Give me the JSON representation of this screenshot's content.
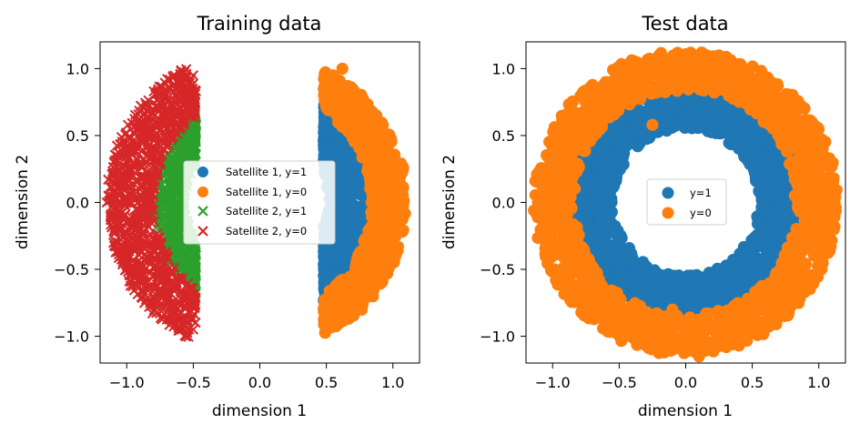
{
  "colors": {
    "blue": "#1f77b4",
    "orange": "#ff7f0e",
    "green": "#2ca02c",
    "red": "#d62728"
  },
  "chart_data": [
    {
      "type": "scatter",
      "title": "Training data",
      "xlabel": "dimension 1",
      "ylabel": "dimension 2",
      "xlim": [
        -1.2,
        1.2
      ],
      "ylim": [
        -1.2,
        1.2
      ],
      "xticks": [
        -1.0,
        -0.5,
        0.0,
        0.5,
        1.0
      ],
      "xtick_labels": [
        "−1.0",
        "−0.5",
        "0.0",
        "0.5",
        "1.0"
      ],
      "yticks": [
        -1.0,
        -0.5,
        0.0,
        0.5,
        1.0
      ],
      "ytick_labels": [
        "−1.0",
        "−0.5",
        "0.0",
        "0.5",
        "1.0"
      ],
      "legend_position": "center",
      "series": [
        {
          "name": "Satellite 1, y=1",
          "marker": "circle",
          "color": "#1f77b4",
          "description": "right half-annulus, radius 0.5 to 0.85, x > 0.45",
          "points": [
            [
              0.6,
              0.55
            ],
            [
              0.7,
              0.4
            ],
            [
              0.75,
              0.25
            ],
            [
              0.8,
              0.1
            ],
            [
              0.8,
              -0.05
            ],
            [
              0.78,
              -0.2
            ],
            [
              0.72,
              -0.35
            ],
            [
              0.65,
              -0.5
            ],
            [
              0.58,
              -0.62
            ],
            [
              0.55,
              -0.8
            ],
            [
              0.62,
              0.2
            ],
            [
              0.68,
              -0.1
            ],
            [
              0.6,
              -0.3
            ],
            [
              0.55,
              0.35
            ]
          ]
        },
        {
          "name": "Satellite 1, y=0",
          "marker": "circle",
          "color": "#ff7f0e",
          "description": "right half-annulus, radius 0.85 to 1.1, x > 0.45",
          "points": [
            [
              0.55,
              0.95
            ],
            [
              0.62,
              1.0
            ],
            [
              0.75,
              0.8
            ],
            [
              0.88,
              0.6
            ],
            [
              0.95,
              0.4
            ],
            [
              1.0,
              0.2
            ],
            [
              1.05,
              0.0
            ],
            [
              1.02,
              -0.2
            ],
            [
              0.95,
              -0.4
            ],
            [
              0.85,
              -0.6
            ],
            [
              0.75,
              -0.75
            ],
            [
              0.6,
              -0.9
            ],
            [
              0.5,
              0.8
            ],
            [
              0.52,
              -0.9
            ]
          ]
        },
        {
          "name": "Satellite 2, y=1",
          "marker": "x",
          "color": "#2ca02c",
          "description": "left half-annulus, radius 0.55 to 0.8, x < -0.45",
          "points": [
            [
              -0.55,
              0.65
            ],
            [
              -0.6,
              0.5
            ],
            [
              -0.68,
              0.35
            ],
            [
              -0.72,
              0.2
            ],
            [
              -0.75,
              0.0
            ],
            [
              -0.72,
              -0.2
            ],
            [
              -0.68,
              -0.35
            ],
            [
              -0.6,
              -0.5
            ],
            [
              -0.52,
              -0.65
            ],
            [
              -0.5,
              0.6
            ],
            [
              -0.5,
              -0.55
            ]
          ]
        },
        {
          "name": "Satellite 2, y=0",
          "marker": "x",
          "color": "#d62728",
          "description": "left half-annulus, radius 0.8 to 1.15, x < -0.45",
          "points": [
            [
              -0.5,
              0.95
            ],
            [
              -0.6,
              0.9
            ],
            [
              -0.75,
              0.75
            ],
            [
              -0.9,
              0.55
            ],
            [
              -1.0,
              0.35
            ],
            [
              -1.05,
              0.15
            ],
            [
              -1.1,
              0.0
            ],
            [
              -1.05,
              -0.2
            ],
            [
              -1.0,
              -0.4
            ],
            [
              -0.9,
              -0.55
            ],
            [
              -0.8,
              -0.7
            ],
            [
              -0.65,
              -0.85
            ],
            [
              -0.5,
              -0.95
            ],
            [
              -1.15,
              0.0
            ]
          ]
        }
      ]
    },
    {
      "type": "scatter",
      "title": "Test data",
      "xlabel": "dimension 1",
      "ylabel": "dimension 2",
      "xlim": [
        -1.2,
        1.2
      ],
      "ylim": [
        -1.2,
        1.2
      ],
      "xticks": [
        -1.0,
        -0.5,
        0.0,
        0.5,
        1.0
      ],
      "xtick_labels": [
        "−1.0",
        "−0.5",
        "0.0",
        "0.5",
        "1.0"
      ],
      "yticks": [
        -1.0,
        -0.5,
        0.0,
        0.5,
        1.0
      ],
      "ytick_labels": [
        "−1.0",
        "−0.5",
        "0.0",
        "0.5",
        "1.0"
      ],
      "legend_position": "center",
      "series": [
        {
          "name": "y=1",
          "marker": "circle",
          "color": "#1f77b4",
          "description": "full annulus, radius 0.5 to 0.85",
          "points": [
            [
              0.0,
              0.75
            ],
            [
              0.5,
              0.55
            ],
            [
              0.75,
              0.0
            ],
            [
              0.55,
              -0.5
            ],
            [
              0.0,
              -0.75
            ],
            [
              -0.5,
              -0.55
            ],
            [
              -0.75,
              0.0
            ],
            [
              -0.5,
              0.55
            ],
            [
              -0.1,
              -0.82
            ],
            [
              0.82,
              0.05
            ]
          ]
        },
        {
          "name": "y=0",
          "marker": "circle",
          "color": "#ff7f0e",
          "description": "full annulus, radius 0.85 to 1.15",
          "points": [
            [
              0.0,
              1.0
            ],
            [
              0.7,
              0.7
            ],
            [
              1.0,
              0.0
            ],
            [
              0.7,
              -0.7
            ],
            [
              0.0,
              -1.0
            ],
            [
              -0.7,
              -0.7
            ],
            [
              -1.0,
              0.0
            ],
            [
              -0.7,
              0.7
            ],
            [
              -0.25,
              0.58
            ],
            [
              0.12,
              1.12
            ],
            [
              0.1,
              -1.15
            ],
            [
              -0.1,
              -0.8
            ],
            [
              0.82,
              0.05
            ]
          ]
        }
      ]
    }
  ]
}
